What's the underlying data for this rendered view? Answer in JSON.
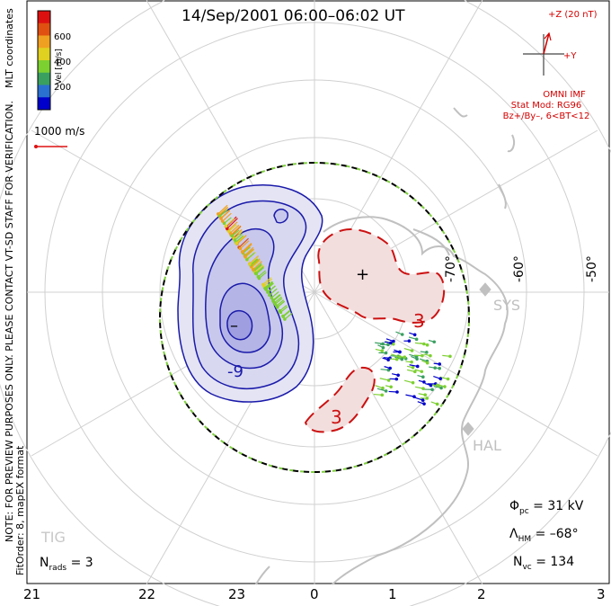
{
  "title": "14/Sep/2001 06:00–06:02 UT",
  "side_note": "NOTE: FOR PREVIEW PURPOSES ONLY. PLEASE CONTACT VT-SD STAFF FOR VERIFICATION.",
  "fit_order": "FitOrder: 8, mapEX format",
  "coordinates_label": "MLT coordinates",
  "colorbar": {
    "unit_label": "Vel [m/s]",
    "ticks": [
      "600",
      "400",
      "200"
    ],
    "colors": [
      "#0000cc",
      "#2a70d0",
      "#3aa060",
      "#7cd030",
      "#e0d020",
      "#f0a020",
      "#e05010",
      "#dd1010"
    ]
  },
  "ref_vector_label": "1000 m/s",
  "imf": {
    "z_label": "+Z (20 nT)",
    "y_label": "+Y",
    "model_title": "OMNI IMF",
    "model_line1": "Stat Mod: RG96",
    "model_line2": "Bz+/By–, 6<BT<12",
    "color": "#d40000"
  },
  "lat_labels": [
    "-70°",
    "-60°",
    "-50°"
  ],
  "stations": [
    "SYS",
    "HAL",
    "TIG"
  ],
  "contour_labels": {
    "negative_center": "–",
    "negative_line": "-9",
    "positive_center": "+",
    "positive_line_a": "3",
    "positive_line_b": "3"
  },
  "stats": {
    "phi_pc_label": "Φ",
    "phi_pc_sub": "pc",
    "phi_pc_value": "= 31 kV",
    "lambda_hm_label": "Λ",
    "lambda_hm_sub": "HM",
    "lambda_hm_value": "= –68°",
    "n_vc_label": "N",
    "n_vc_sub": "vc",
    "n_vc_value": "= 134",
    "n_rads_label": "N",
    "n_rads_sub": "rads",
    "n_rads_value": "= 3"
  },
  "mlt_labels": [
    "21",
    "22",
    "23",
    "0",
    "1",
    "2",
    "3"
  ],
  "colors": {
    "negative_cell": "#1a1aaa",
    "positive_cell": "#cc1111",
    "hmb": "#80d040",
    "land": "#c8c8c8"
  }
}
